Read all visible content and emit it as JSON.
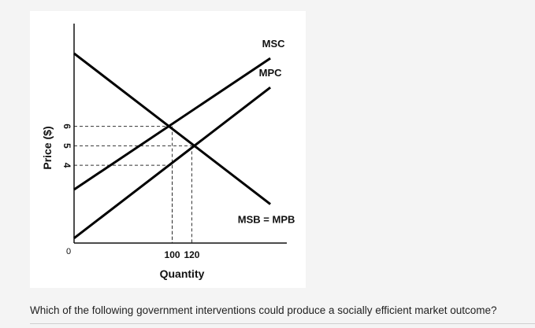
{
  "chart_data": {
    "type": "line",
    "title": "",
    "xlabel": "Quantity",
    "ylabel": "Price ($)",
    "origin_label": "0",
    "x_ticks": [
      "100",
      "120"
    ],
    "y_ticks": [
      "4",
      "5",
      "6"
    ],
    "series": [
      {
        "name": "MSC",
        "points": [
          [
            0,
            2.75
          ],
          [
            200,
            9.5
          ]
        ]
      },
      {
        "name": "MPC",
        "points": [
          [
            0,
            0.25
          ],
          [
            200,
            8.0
          ]
        ]
      },
      {
        "name": "MSB = MPB",
        "points": [
          [
            0,
            9.75
          ],
          [
            200,
            2.0
          ]
        ]
      }
    ],
    "reference_points": [
      {
        "x": 100,
        "y": 6
      },
      {
        "x": 120,
        "y": 5
      },
      {
        "x": 100,
        "y": 4
      }
    ],
    "xlim": [
      0,
      220
    ],
    "ylim": [
      0,
      11
    ]
  },
  "question": {
    "text": "Which of the following government interventions could produce a socially efficient market outcome?"
  }
}
